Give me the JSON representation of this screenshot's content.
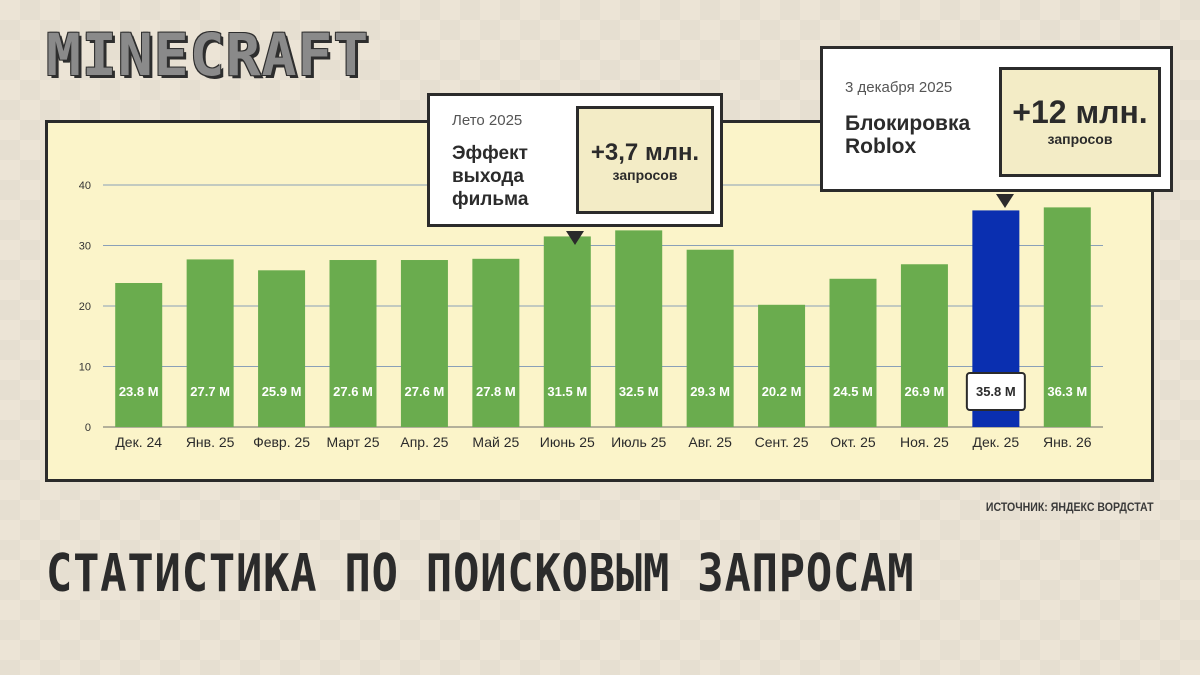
{
  "logo": {
    "text": "MINECRAFT"
  },
  "headline": "СТАТИСТИКА ПО ПОИСКОВЫМ ЗАПРОСАМ",
  "source": "ИСТОЧНИК: ЯНДЕКС ВОРДСТАТ",
  "callouts": {
    "summer": {
      "date": "Лето 2025",
      "description": "Эффект выхода фильма",
      "value": "+3,7 млн.",
      "unit": "запросов"
    },
    "roblox": {
      "date": "3 декабря 2025",
      "description": "Блокировка Roblox",
      "value": "+12 млн.",
      "unit": "запросов"
    }
  },
  "colors": {
    "bar": "#6aac4e",
    "highlight_bar": "#0a2fb0",
    "panel": "#fbf4c9",
    "grid": "#8aa0b8",
    "text": "#2b2b2b"
  },
  "chart_data": {
    "type": "bar",
    "title": "",
    "xlabel": "",
    "ylabel": "",
    "categories": [
      "Дек. 24",
      "Янв. 25",
      "Февр. 25",
      "Март 25",
      "Апр. 25",
      "Май 25",
      "Июнь 25",
      "Июль 25",
      "Авг. 25",
      "Сент. 25",
      "Окт. 25",
      "Ноя. 25",
      "Дек. 25",
      "Янв. 26"
    ],
    "values": [
      23.8,
      27.7,
      25.9,
      27.6,
      27.6,
      27.8,
      31.5,
      32.5,
      29.3,
      20.2,
      24.5,
      26.9,
      35.8,
      36.3
    ],
    "data_labels": [
      "23.8 M",
      "27.7 M",
      "25.9 M",
      "27.6 M",
      "27.6 M",
      "27.8 M",
      "31.5 M",
      "32.5 M",
      "29.3 M",
      "20.2 M",
      "24.5 M",
      "26.9 M",
      "35.8 M",
      "36.3 M"
    ],
    "highlight_index": 12,
    "ylim": [
      0,
      40
    ],
    "yticks": [
      0,
      10,
      20,
      30,
      40
    ],
    "grid": true
  }
}
